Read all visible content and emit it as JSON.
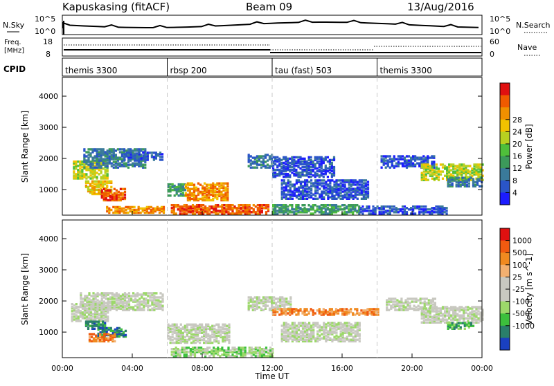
{
  "header": {
    "title": "Kapuskasing (fitACF)",
    "beam": "Beam 09",
    "date": "13/Aug/2016"
  },
  "noise_panel": {
    "left_label": "N.Sky",
    "right_label": "N.Search",
    "left_ticks": [
      "10^5",
      "10^0"
    ],
    "right_ticks": [
      "10^5",
      "10^0"
    ]
  },
  "freq_panel": {
    "left_label_line1": "Freq.",
    "left_label_line2": "[MHz]",
    "right_label": "Nave",
    "left_ticks": [
      "18",
      "8"
    ],
    "right_ticks": [
      "60",
      "0"
    ]
  },
  "cpid_panel": {
    "label": "CPID",
    "segments": [
      {
        "name": "themis 3300",
        "start_hour": 0
      },
      {
        "name": "rbsp 200",
        "start_hour": 6
      },
      {
        "name": "tau (fast) 503",
        "start_hour": 12
      },
      {
        "name": "themis 3300",
        "start_hour": 18
      }
    ]
  },
  "chart_data": [
    {
      "type": "heatmap",
      "title": "",
      "xlabel": "Time UT",
      "ylabel": "Slant Range [km]",
      "xlim": [
        0,
        24
      ],
      "ylim": [
        180,
        4600
      ],
      "x_ticks": [
        "00:00",
        "04:00",
        "08:00",
        "12:00",
        "16:00",
        "20:00",
        "00:00"
      ],
      "y_ticks": [
        1000,
        2000,
        3000,
        4000
      ],
      "colorbar": {
        "label": "Power [dB]",
        "ticks": [
          4,
          8,
          12,
          16,
          20,
          24,
          28
        ],
        "colors": [
          "#1c1cff",
          "#2a55c8",
          "#3a7a9a",
          "#3c9a5a",
          "#4fbf3a",
          "#b8d020",
          "#f2c200",
          "#f09000",
          "#f05a00",
          "#e01010"
        ]
      },
      "regions": [
        {
          "t0": 0.6,
          "t1": 2.6,
          "r0": 1350,
          "r1": 1900,
          "level": 5
        },
        {
          "t0": 1.3,
          "t1": 2.8,
          "r0": 850,
          "r1": 1300,
          "level": 6
        },
        {
          "t0": 2.2,
          "t1": 3.6,
          "r0": 650,
          "r1": 1050,
          "level": 8
        },
        {
          "t0": 1.2,
          "t1": 4.8,
          "r0": 1700,
          "r1": 2300,
          "level": 2
        },
        {
          "t0": 3.5,
          "t1": 5.7,
          "r0": 1950,
          "r1": 2200,
          "level": 1
        },
        {
          "t0": 2.5,
          "t1": 5.8,
          "r0": 250,
          "r1": 450,
          "level": 7
        },
        {
          "t0": 6.0,
          "t1": 7.0,
          "r0": 800,
          "r1": 1200,
          "level": 3
        },
        {
          "t0": 7.0,
          "t1": 9.5,
          "r0": 650,
          "r1": 1200,
          "level": 7
        },
        {
          "t0": 6.2,
          "t1": 11.8,
          "r0": 220,
          "r1": 500,
          "level": 8
        },
        {
          "t0": 10.6,
          "t1": 12.0,
          "r0": 1700,
          "r1": 2150,
          "level": 2
        },
        {
          "t0": 12.0,
          "t1": 15.5,
          "r0": 1400,
          "r1": 2050,
          "level": 1
        },
        {
          "t0": 12.5,
          "t1": 17.5,
          "r0": 700,
          "r1": 1300,
          "level": 1
        },
        {
          "t0": 12.0,
          "t1": 17.0,
          "r0": 220,
          "r1": 500,
          "level": 3
        },
        {
          "t0": 18.2,
          "t1": 21.3,
          "r0": 1700,
          "r1": 2100,
          "level": 1
        },
        {
          "t0": 20.5,
          "t1": 24.0,
          "r0": 1300,
          "r1": 1800,
          "level": 5
        },
        {
          "t0": 22.0,
          "t1": 24.0,
          "r0": 1100,
          "r1": 1400,
          "level": 2
        },
        {
          "t0": 17.0,
          "t1": 22.0,
          "r0": 220,
          "r1": 450,
          "level": 1
        }
      ]
    },
    {
      "type": "heatmap",
      "title": "",
      "xlabel": "Time UT",
      "ylabel": "Slant Range [km]",
      "xlim": [
        0,
        24
      ],
      "ylim": [
        180,
        4600
      ],
      "x_ticks": [
        "00:00",
        "04:00",
        "08:00",
        "12:00",
        "16:00",
        "20:00",
        "00:00"
      ],
      "y_ticks": [
        1000,
        2000,
        3000,
        4000
      ],
      "colorbar": {
        "label": "Velocity [m s^-1]",
        "ticks": [
          1000,
          500,
          100,
          25,
          -25,
          -100,
          -500,
          -1000
        ],
        "colors": [
          "#1a40c0",
          "#2a7f6a",
          "#3cc03c",
          "#9cd86a",
          "#c8c8c0",
          "#c8c8c0",
          "#f2b070",
          "#f08a20",
          "#f05a10",
          "#e01010"
        ]
      },
      "regions": [
        {
          "t0": 0.5,
          "t1": 2.6,
          "r0": 1350,
          "r1": 1900,
          "level": 4
        },
        {
          "t0": 1.3,
          "t1": 2.4,
          "r0": 1100,
          "r1": 1350,
          "level": 1
        },
        {
          "t0": 2.0,
          "t1": 3.6,
          "r0": 850,
          "r1": 1150,
          "level": 1
        },
        {
          "t0": 1.5,
          "t1": 3.0,
          "r0": 700,
          "r1": 950,
          "level": 7
        },
        {
          "t0": 1.0,
          "t1": 5.8,
          "r0": 1700,
          "r1": 2250,
          "level": 4
        },
        {
          "t0": 6.0,
          "t1": 9.5,
          "r0": 650,
          "r1": 1250,
          "level": 4
        },
        {
          "t0": 6.2,
          "t1": 12.0,
          "r0": 220,
          "r1": 500,
          "level": 3
        },
        {
          "t0": 10.6,
          "t1": 13.0,
          "r0": 1700,
          "r1": 2150,
          "level": 4
        },
        {
          "t0": 12.5,
          "t1": 17.0,
          "r0": 700,
          "r1": 1300,
          "level": 4
        },
        {
          "t0": 18.5,
          "t1": 21.3,
          "r0": 1700,
          "r1": 2100,
          "level": 4
        },
        {
          "t0": 20.5,
          "t1": 24.0,
          "r0": 1300,
          "r1": 1800,
          "level": 4
        },
        {
          "t0": 22.0,
          "t1": 23.5,
          "r0": 1100,
          "r1": 1300,
          "level": 2
        },
        {
          "t0": 12.0,
          "t1": 18.0,
          "r0": 1550,
          "r1": 1750,
          "level": 7
        }
      ]
    }
  ]
}
